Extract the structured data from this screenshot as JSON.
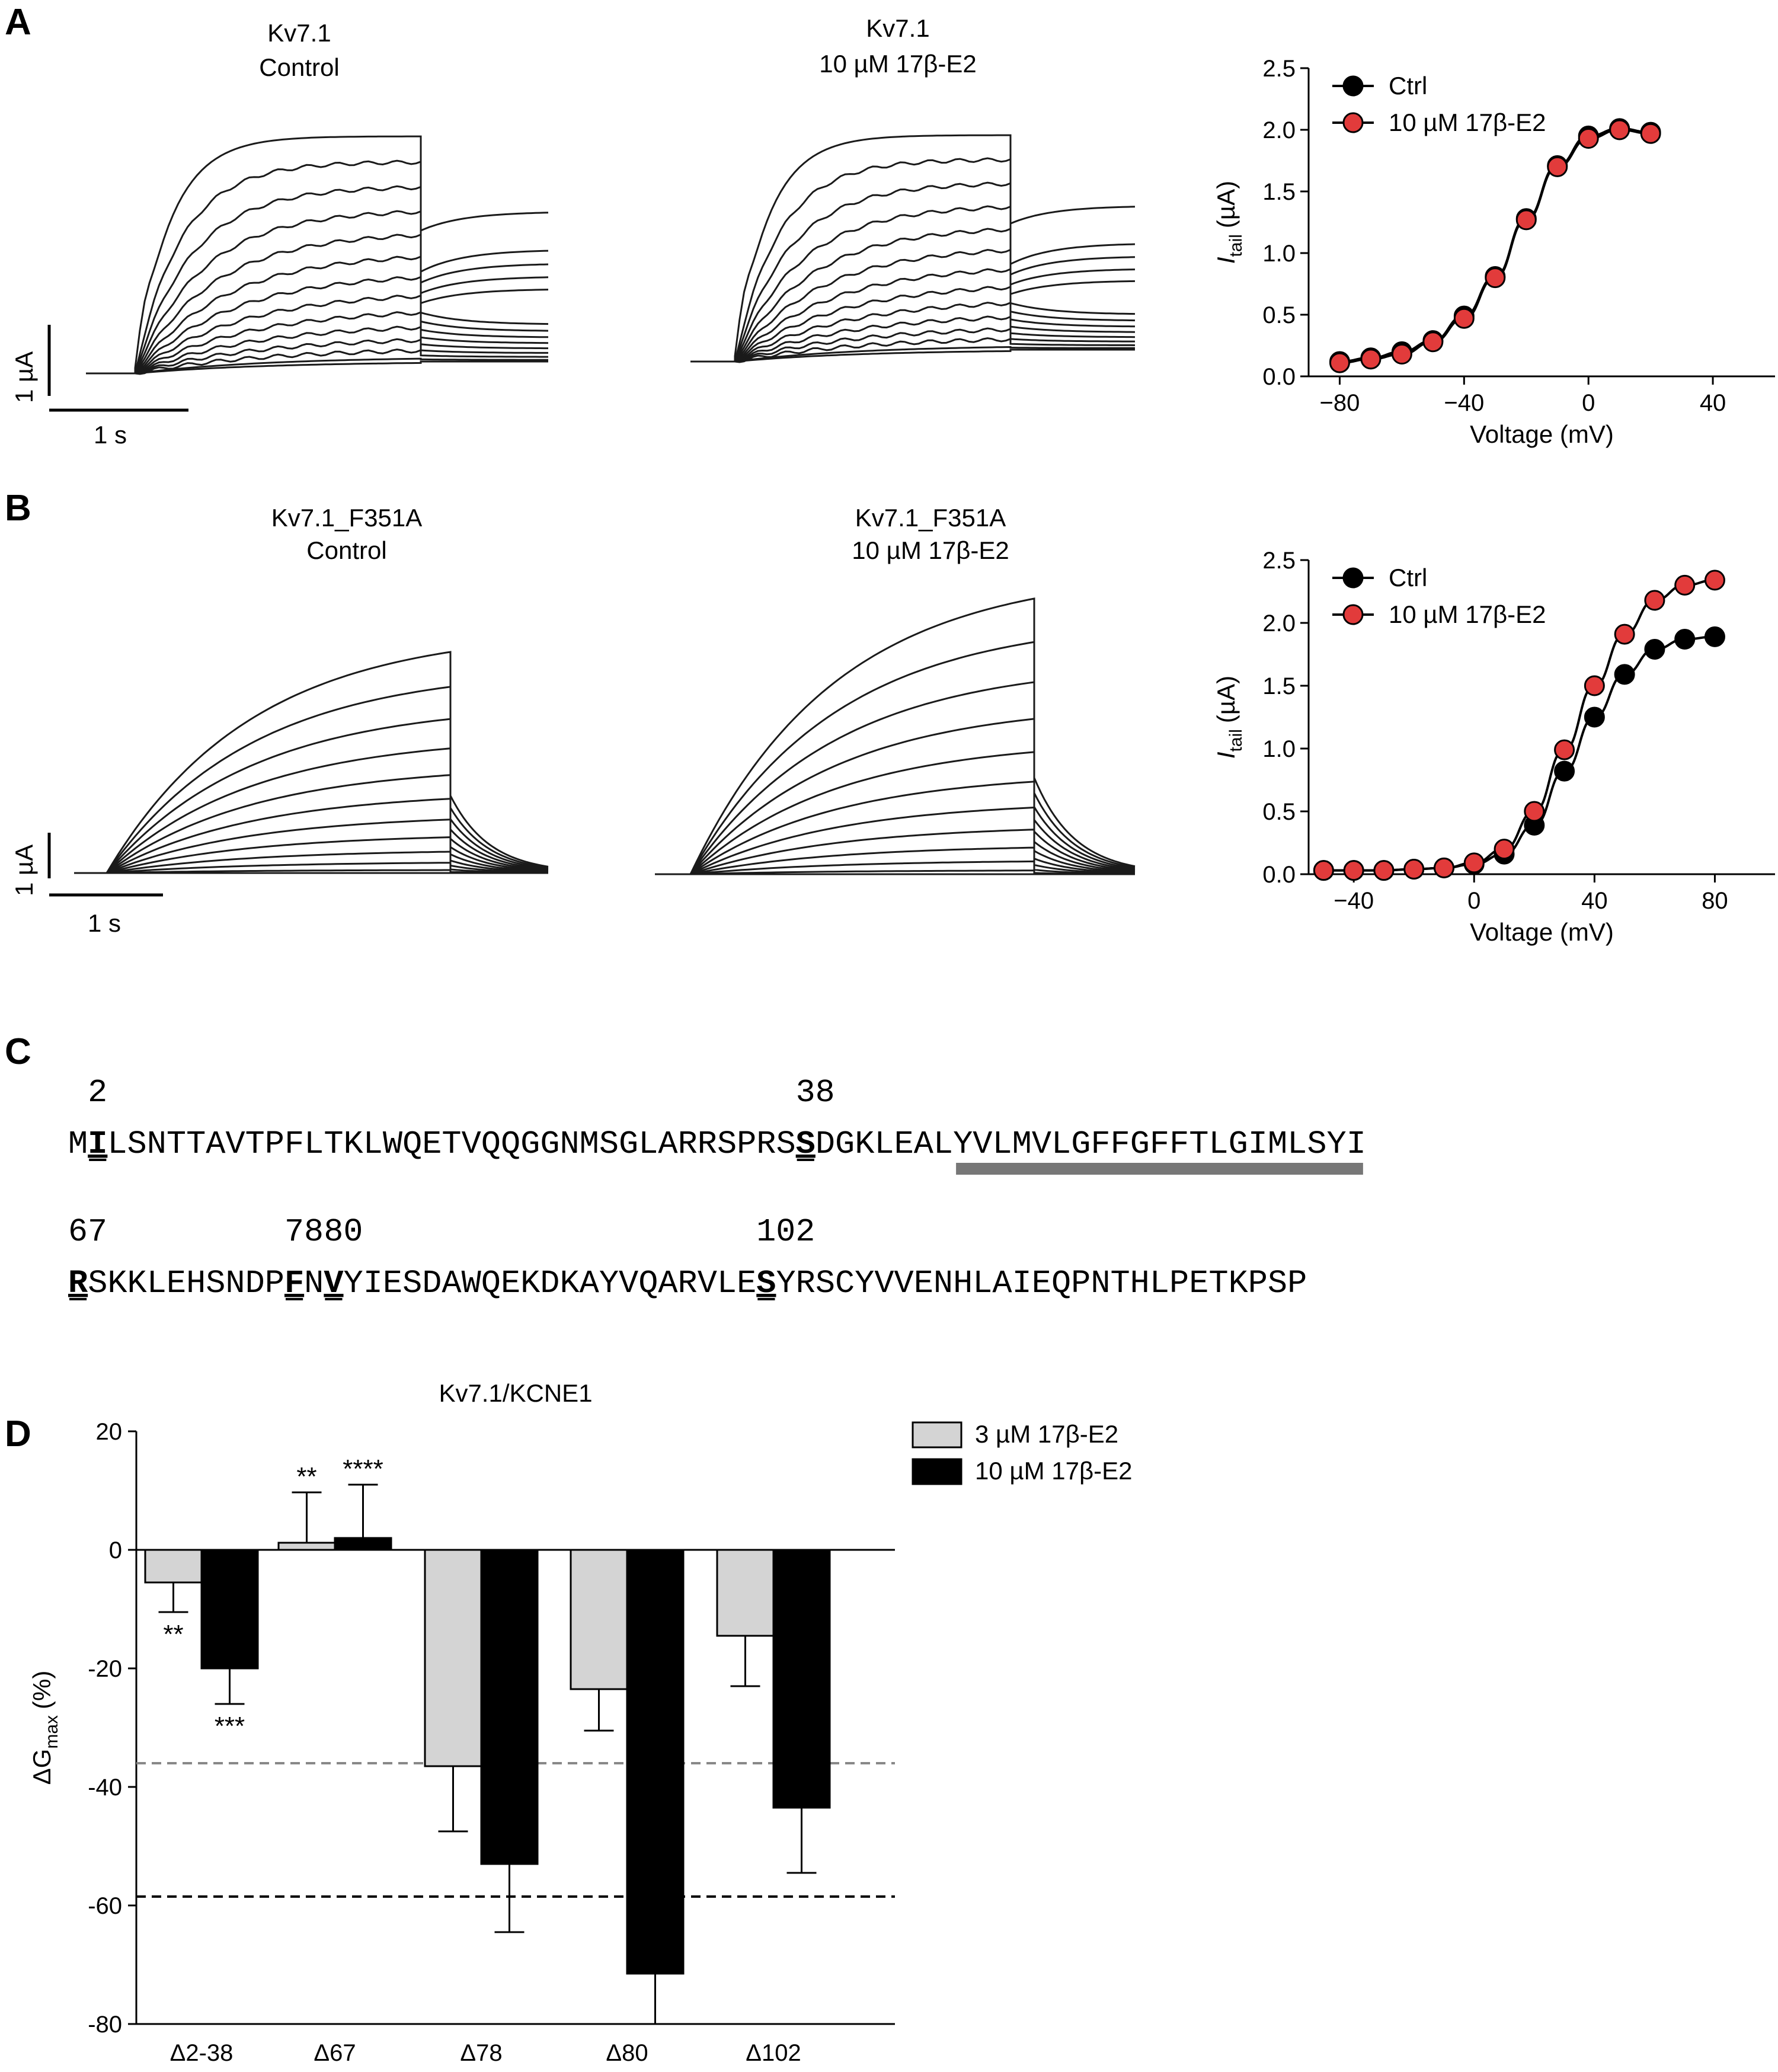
{
  "panels": {
    "A": {
      "letter": "A",
      "trace_left_title": [
        "Kv7.1",
        "Control"
      ],
      "trace_right_title": [
        "Kv7.1",
        "10 µM 17β-E2"
      ],
      "scale_y": "1 µA",
      "scale_x": "1 s"
    },
    "B": {
      "letter": "B",
      "trace_left_title": [
        "Kv7.1_F351A",
        "Control"
      ],
      "trace_right_title": [
        "Kv7.1_F351A",
        "10 µM 17β-E2"
      ],
      "scale_y": "1 µA",
      "scale_x": "1 s"
    },
    "C": {
      "letter": "C",
      "line1": {
        "sequence": "MILSNTTAVTPFLTKLWQETVQQGGNMSGLARRSPRSSDGKLEALYVLMVLGFFGFFTLGIMLSYI",
        "markers": [
          {
            "label": "2",
            "pos": 1
          },
          {
            "label": "38",
            "pos": 37
          }
        ],
        "bold_positions": [
          1,
          37
        ],
        "underline_range": [
          45,
          65
        ]
      },
      "line2": {
        "sequence": "RSKKLEHSNDPFNVYIESDAWQEKDKAYVQARVLESYRSCYVVENHLAIEQPNTHLPETKPSP",
        "markers": [
          {
            "label": "67",
            "pos": 0
          },
          {
            "label": "78",
            "pos": 11
          },
          {
            "label": "80",
            "pos": 13
          },
          {
            "label": "102",
            "pos": 35
          }
        ],
        "bold_positions": [
          0,
          11,
          13,
          35
        ]
      }
    },
    "D": {
      "letter": "D"
    }
  },
  "chart_data": [
    {
      "id": "A-iv",
      "type": "scatter",
      "xlabel": "Voltage (mV)",
      "ylabel": "I",
      "ylabel_sub": "tail",
      "ylabel_unit": "(µA)",
      "xlim": [
        -90,
        60
      ],
      "ylim": [
        0,
        2.5
      ],
      "xticks": [
        -80,
        -40,
        0,
        40
      ],
      "xtick_labels": [
        "−80",
        "−40",
        "0",
        "40"
      ],
      "yticks": [
        0.0,
        0.5,
        1.0,
        1.5,
        2.0,
        2.5
      ],
      "ytick_labels": [
        "0.0",
        "0.5",
        "1.0",
        "1.5",
        "2.0",
        "2.5"
      ],
      "legend": "top-left",
      "series": [
        {
          "name": "Ctrl",
          "color": "#000000",
          "x": [
            -80,
            -70,
            -60,
            -50,
            -40,
            -30,
            -20,
            -10,
            0,
            10,
            20
          ],
          "y": [
            0.12,
            0.15,
            0.2,
            0.29,
            0.49,
            0.81,
            1.28,
            1.71,
            1.95,
            2.01,
            1.98
          ]
        },
        {
          "name": "10 µM 17β-E2",
          "color": "#e23b3b",
          "x": [
            -80,
            -70,
            -60,
            -50,
            -40,
            -30,
            -20,
            -10,
            0,
            10,
            20
          ],
          "y": [
            0.11,
            0.14,
            0.18,
            0.28,
            0.47,
            0.8,
            1.27,
            1.7,
            1.93,
            2.0,
            1.97
          ]
        }
      ]
    },
    {
      "id": "B-iv",
      "type": "scatter",
      "xlabel": "Voltage (mV)",
      "ylabel": "I",
      "ylabel_sub": "tail",
      "ylabel_unit": "(µA)",
      "xlim": [
        -55,
        100
      ],
      "ylim": [
        0,
        2.5
      ],
      "xticks": [
        -40,
        0,
        40,
        80
      ],
      "xtick_labels": [
        "−40",
        "0",
        "40",
        "80"
      ],
      "yticks": [
        0.0,
        0.5,
        1.0,
        1.5,
        2.0,
        2.5
      ],
      "ytick_labels": [
        "0.0",
        "0.5",
        "1.0",
        "1.5",
        "2.0",
        "2.5"
      ],
      "legend": "top-left",
      "series": [
        {
          "name": "Ctrl",
          "color": "#000000",
          "x": [
            -50,
            -40,
            -30,
            -20,
            -10,
            0,
            10,
            20,
            30,
            40,
            50,
            60,
            70,
            80
          ],
          "y": [
            0.03,
            0.03,
            0.03,
            0.04,
            0.05,
            0.08,
            0.16,
            0.39,
            0.82,
            1.25,
            1.59,
            1.79,
            1.87,
            1.89
          ]
        },
        {
          "name": "10 µM 17β-E2",
          "color": "#e23b3b",
          "x": [
            -50,
            -40,
            -30,
            -20,
            -10,
            0,
            10,
            20,
            30,
            40,
            50,
            60,
            70,
            80
          ],
          "y": [
            0.03,
            0.03,
            0.03,
            0.04,
            0.05,
            0.09,
            0.2,
            0.5,
            0.99,
            1.5,
            1.91,
            2.18,
            2.3,
            2.34
          ]
        }
      ]
    },
    {
      "id": "D-bar",
      "type": "bar",
      "title": "Kv7.1/KCNE1",
      "ylabel": "ΔG",
      "ylabel_sub": "max",
      "ylabel_unit": "(%)",
      "ylim": [
        -80,
        20
      ],
      "yticks": [
        20,
        0,
        -20,
        -40,
        -60,
        -80
      ],
      "ytick_labels": [
        "20",
        "0",
        "-20",
        "-40",
        "-60",
        "-80"
      ],
      "categories": [
        "Δ2-38",
        "Δ67",
        "Δ78",
        "Δ80",
        "Δ102"
      ],
      "series": [
        {
          "name": "3 µM 17β-E2",
          "color": "#d4d4d4",
          "values": [
            -5.5,
            1.2,
            -36.5,
            -23.5,
            -14.5
          ],
          "errors": [
            5,
            8.5,
            11,
            7,
            8.5
          ],
          "significance": [
            "**",
            "**",
            "",
            "",
            ""
          ]
        },
        {
          "name": "10 µM 17β-E2",
          "color": "#000000",
          "values": [
            -20,
            2,
            -53,
            -71.5,
            -43.5
          ],
          "errors": [
            6,
            9,
            11.5,
            8.5,
            11
          ],
          "significance": [
            "***",
            "****",
            "",
            "",
            ""
          ]
        }
      ],
      "reference_lines": [
        {
          "value": -36,
          "color": "#888888",
          "style": "dashed"
        },
        {
          "value": -58.5,
          "color": "#000000",
          "style": "dashed"
        }
      ],
      "legend": "top-right"
    }
  ]
}
